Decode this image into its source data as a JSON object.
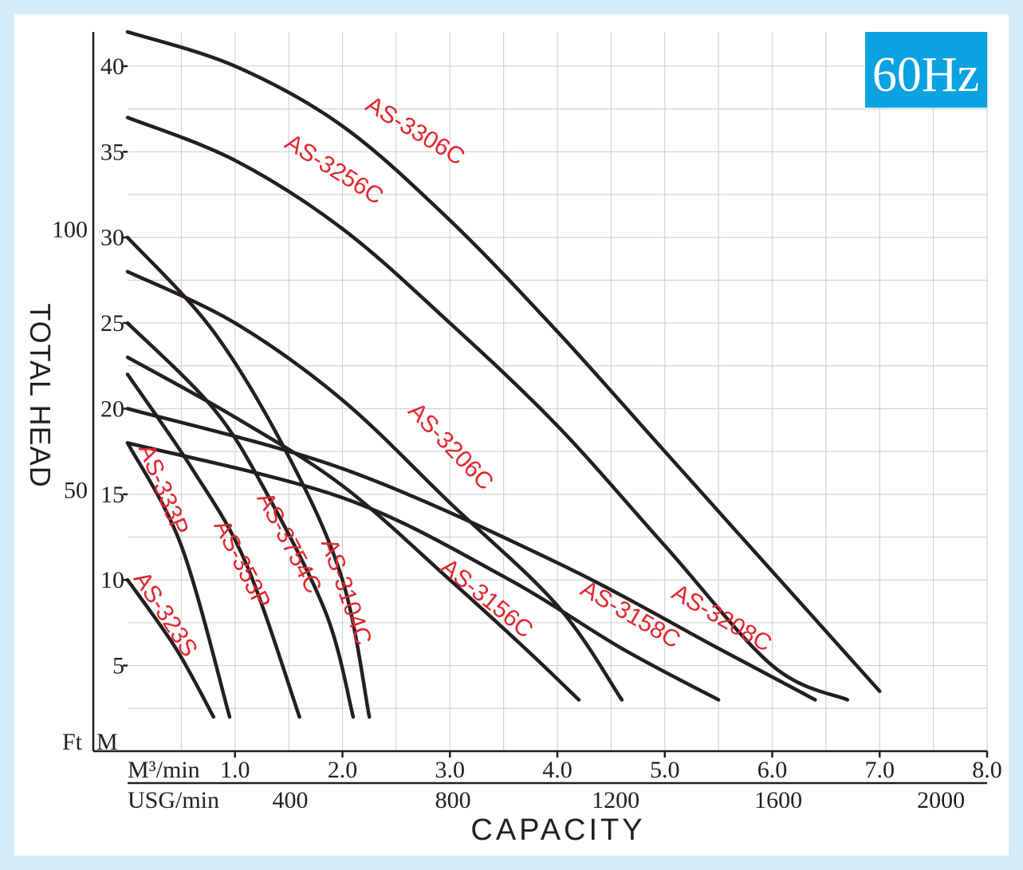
{
  "chart_data": {
    "type": "line",
    "frequency_badge": "60Hz",
    "xlabel": "CAPACITY",
    "ylabel": "TOTAL HEAD",
    "x_primary_unit": "M³/min",
    "x_secondary_unit": "USG/min",
    "y_unit_ft": "Ft",
    "y_unit_m": "M",
    "xlim": [
      0,
      8.0
    ],
    "ylim": [
      0,
      42
    ],
    "x_ticks_m3": [
      "1.0",
      "2.0",
      "3.0",
      "4.0",
      "5.0",
      "6.0",
      "7.0",
      "8.0"
    ],
    "x_tick_values_m3": [
      1,
      2,
      3,
      4,
      5,
      6,
      7,
      8
    ],
    "x_ticks_usg": [
      "400",
      "800",
      "1200",
      "1600",
      "2000"
    ],
    "x_tick_values_usg": [
      400,
      800,
      1200,
      1600,
      2000
    ],
    "y_ticks_m": [
      "5",
      "10",
      "15",
      "20",
      "25",
      "30",
      "35",
      "40"
    ],
    "y_tick_values_m": [
      5,
      10,
      15,
      20,
      25,
      30,
      35,
      40
    ],
    "y_ticks_ft": [
      "50",
      "100"
    ],
    "y_tick_values_ft": [
      50,
      100
    ],
    "series": [
      {
        "name": "AS-3306C",
        "points": [
          [
            0,
            42
          ],
          [
            1,
            40
          ],
          [
            2,
            36.5
          ],
          [
            3,
            31
          ],
          [
            4,
            24.5
          ],
          [
            5,
            17.5
          ],
          [
            6,
            10.5
          ],
          [
            7,
            3.5
          ]
        ],
        "label_at": [
          2.2,
          37.5
        ],
        "label_angle": 31
      },
      {
        "name": "AS-3256C",
        "points": [
          [
            0,
            37
          ],
          [
            1,
            34.5
          ],
          [
            2,
            30.5
          ],
          [
            3,
            25
          ],
          [
            4,
            19
          ],
          [
            5,
            12
          ],
          [
            6,
            5
          ],
          [
            6.7,
            3
          ]
        ],
        "label_at": [
          1.45,
          35.3
        ],
        "label_angle": 32
      },
      {
        "name": "AS-3206C",
        "points": [
          [
            0,
            28
          ],
          [
            1,
            25
          ],
          [
            2,
            20.5
          ],
          [
            3,
            14.5
          ],
          [
            4,
            8.5
          ],
          [
            4.6,
            3
          ]
        ],
        "label_at": [
          2.6,
          19.8
        ],
        "label_angle": 46
      },
      {
        "name": "AS-3208C",
        "points": [
          [
            0,
            20
          ],
          [
            2,
            16.5
          ],
          [
            4,
            11
          ],
          [
            5.5,
            6
          ],
          [
            6.4,
            3
          ]
        ],
        "label_at": [
          5.05,
          9.0
        ],
        "label_angle": 30
      },
      {
        "name": "AS-3158C",
        "points": [
          [
            0,
            18
          ],
          [
            2,
            14.8
          ],
          [
            3.5,
            10.2
          ],
          [
            4.6,
            6
          ],
          [
            5.5,
            3
          ]
        ],
        "label_at": [
          4.2,
          9.2
        ],
        "label_angle": 30
      },
      {
        "name": "AS-3156C",
        "points": [
          [
            0,
            23
          ],
          [
            1,
            19.5
          ],
          [
            2,
            15.5
          ],
          [
            3,
            10
          ],
          [
            3.7,
            6
          ],
          [
            4.2,
            3
          ]
        ],
        "label_at": [
          2.9,
          10.6
        ],
        "label_angle": 39
      },
      {
        "name": "AS-3104C",
        "points": [
          [
            0,
            30
          ],
          [
            0.8,
            24.5
          ],
          [
            1.5,
            17.2
          ],
          [
            2,
            10
          ],
          [
            2.25,
            2
          ]
        ],
        "label_at": [
          1.8,
          12.2
        ],
        "label_angle": 71
      },
      {
        "name": "AS-3754C",
        "points": [
          [
            0,
            25
          ],
          [
            0.8,
            20
          ],
          [
            1.3,
            15
          ],
          [
            1.85,
            8
          ],
          [
            2.1,
            2
          ]
        ],
        "label_at": [
          1.2,
          14.8
        ],
        "label_angle": 62
      },
      {
        "name": "AS-353P",
        "points": [
          [
            0,
            22
          ],
          [
            0.6,
            16.5
          ],
          [
            1.1,
            11
          ],
          [
            1.6,
            2
          ]
        ],
        "label_at": [
          0.8,
          13.2
        ],
        "label_angle": 63
      },
      {
        "name": "AS-333P",
        "points": [
          [
            0,
            18
          ],
          [
            0.5,
            12
          ],
          [
            0.95,
            2
          ]
        ],
        "label_at": [
          0.1,
          17.7
        ],
        "label_angle": 68
      },
      {
        "name": "AS-323S",
        "points": [
          [
            0,
            10
          ],
          [
            0.45,
            6
          ],
          [
            0.8,
            2
          ]
        ],
        "label_at": [
          0.05,
          10.1
        ],
        "label_angle": 57
      }
    ]
  }
}
